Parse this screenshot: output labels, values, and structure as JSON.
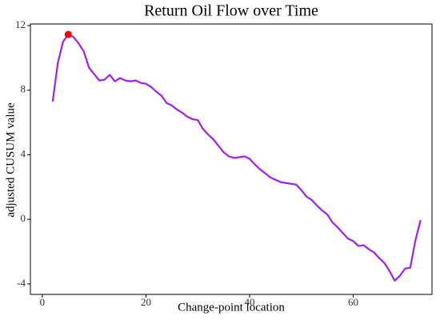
{
  "chart_data": {
    "type": "line",
    "title": "Return Oil Flow over Time",
    "xlabel": "Change-point location",
    "ylabel": "adjusted CUSUM value",
    "x": [
      2,
      3,
      4,
      5,
      6,
      7,
      8,
      9,
      10,
      11,
      12,
      13,
      14,
      15,
      16,
      17,
      18,
      19,
      20,
      21,
      22,
      23,
      24,
      25,
      26,
      27,
      28,
      29,
      30,
      31,
      32,
      33,
      34,
      35,
      36,
      37,
      38,
      39,
      40,
      41,
      42,
      43,
      44,
      45,
      46,
      47,
      48,
      49,
      50,
      51,
      52,
      53,
      54,
      55,
      56,
      57,
      58,
      59,
      60,
      61,
      62,
      63,
      64,
      65,
      66,
      67,
      68,
      69,
      70,
      71,
      72,
      73
    ],
    "series": [
      {
        "name": "CUSUM",
        "color": "#a020f0",
        "values": [
          7.3,
          9.7,
          11.0,
          11.45,
          11.3,
          10.9,
          10.4,
          9.4,
          9.0,
          8.6,
          8.65,
          8.95,
          8.55,
          8.75,
          8.6,
          8.55,
          8.6,
          8.45,
          8.4,
          8.2,
          7.9,
          7.65,
          7.2,
          7.05,
          6.8,
          6.6,
          6.35,
          6.2,
          6.15,
          5.6,
          5.25,
          4.95,
          4.55,
          4.15,
          3.9,
          3.8,
          3.85,
          3.9,
          3.75,
          3.4,
          3.1,
          2.85,
          2.6,
          2.45,
          2.3,
          2.25,
          2.2,
          2.15,
          1.8,
          1.4,
          1.2,
          0.85,
          0.55,
          0.3,
          -0.2,
          -0.5,
          -0.85,
          -1.2,
          -1.35,
          -1.65,
          -1.6,
          -1.85,
          -2.05,
          -2.4,
          -2.7,
          -3.2,
          -3.8,
          -3.5,
          -3.05,
          -3.0,
          -1.3,
          -0.05
        ]
      }
    ],
    "highlight": {
      "x": 5,
      "y": 11.45,
      "color": "#ff0000"
    },
    "xlim": [
      -2.3,
      75.2
    ],
    "ylim": [
      -4.65,
      12.1
    ],
    "xticks": [
      0,
      20,
      40,
      60
    ],
    "yticks": [
      -4,
      0,
      4,
      8,
      12
    ]
  }
}
